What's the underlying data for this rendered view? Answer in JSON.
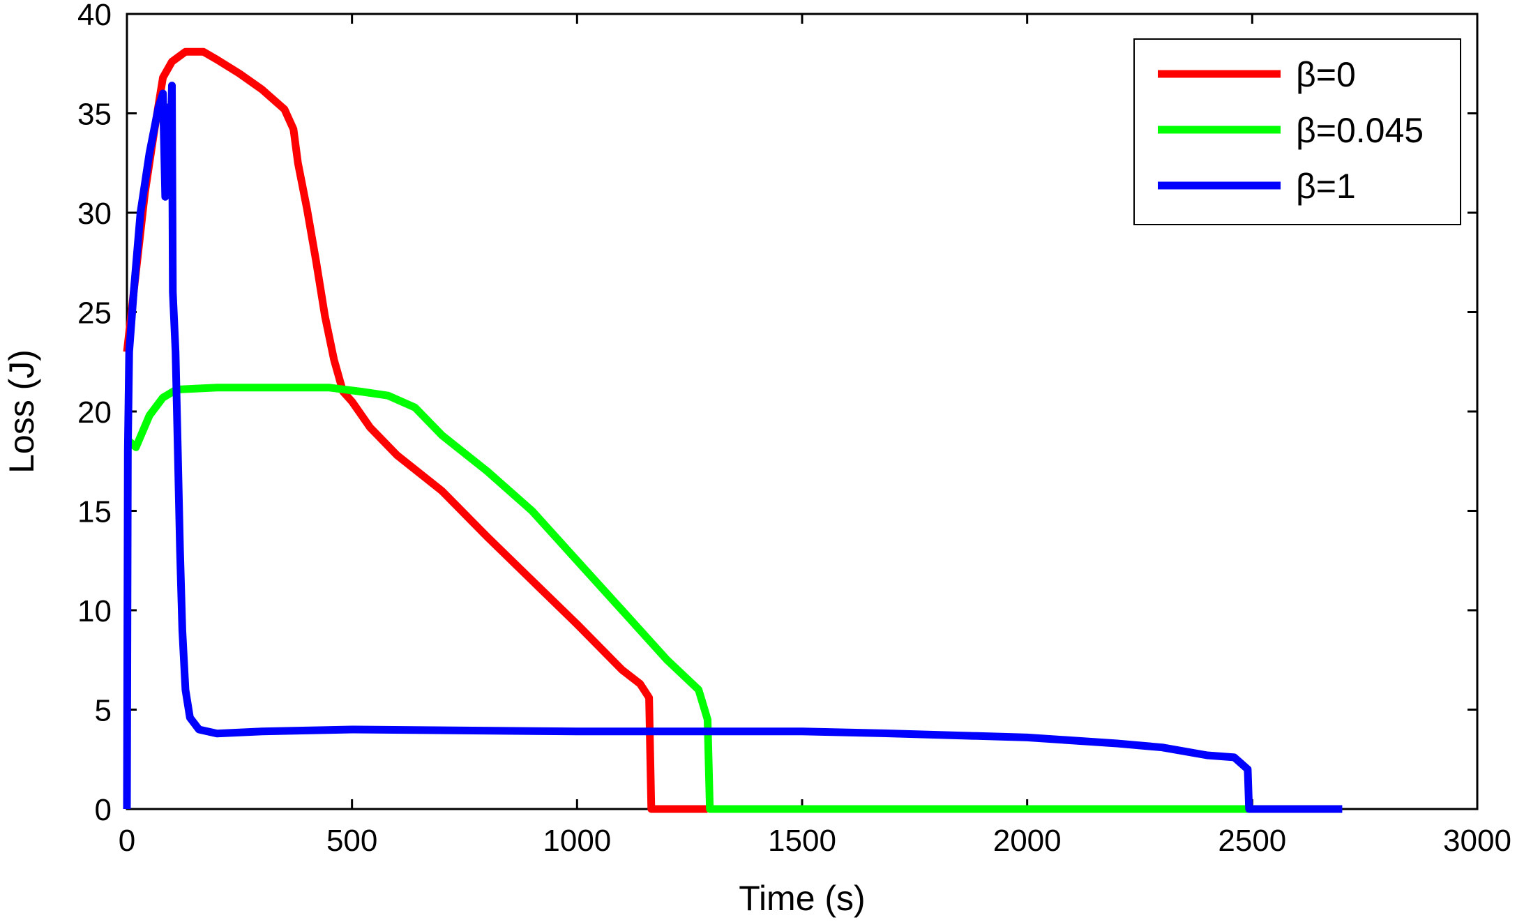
{
  "chart_data": {
    "type": "line",
    "xlabel": "Time (s)",
    "ylabel": "Loss (J)",
    "xlim": [
      0,
      3000
    ],
    "ylim": [
      0,
      40
    ],
    "x_ticks": [
      0,
      500,
      1000,
      1500,
      2000,
      2500,
      3000
    ],
    "y_ticks": [
      0,
      5,
      10,
      15,
      20,
      25,
      30,
      35,
      40
    ],
    "x_tick_labels": [
      "0",
      "500",
      "1000",
      "1500",
      "2000",
      "2500",
      "3000"
    ],
    "y_tick_labels": [
      "0",
      "5",
      "10",
      "15",
      "20",
      "25",
      "30",
      "35",
      "40"
    ],
    "grid": false,
    "legend_position": "top-right",
    "series": [
      {
        "name": "β=0",
        "color": "#ff0000",
        "points": [
          [
            0,
            23
          ],
          [
            20,
            27
          ],
          [
            40,
            31
          ],
          [
            60,
            34
          ],
          [
            80,
            36.8
          ],
          [
            100,
            37.6
          ],
          [
            130,
            38.1
          ],
          [
            170,
            38.1
          ],
          [
            200,
            37.7
          ],
          [
            250,
            37
          ],
          [
            300,
            36.2
          ],
          [
            350,
            35.2
          ],
          [
            370,
            34.2
          ],
          [
            380,
            32.5
          ],
          [
            400,
            30.2
          ],
          [
            420,
            27.6
          ],
          [
            440,
            24.8
          ],
          [
            460,
            22.6
          ],
          [
            480,
            21
          ],
          [
            500,
            20.5
          ],
          [
            540,
            19.2
          ],
          [
            600,
            17.8
          ],
          [
            700,
            16
          ],
          [
            800,
            13.7
          ],
          [
            900,
            11.5
          ],
          [
            1000,
            9.3
          ],
          [
            1100,
            7
          ],
          [
            1140,
            6.3
          ],
          [
            1160,
            5.6
          ],
          [
            1165,
            0
          ],
          [
            1290,
            0
          ]
        ]
      },
      {
        "name": "β=0.045",
        "color": "#00ff00",
        "points": [
          [
            0,
            18.6
          ],
          [
            20,
            18.2
          ],
          [
            50,
            19.8
          ],
          [
            80,
            20.7
          ],
          [
            110,
            21.1
          ],
          [
            200,
            21.2
          ],
          [
            300,
            21.2
          ],
          [
            400,
            21.2
          ],
          [
            450,
            21.2
          ],
          [
            520,
            21
          ],
          [
            580,
            20.8
          ],
          [
            640,
            20.2
          ],
          [
            700,
            18.8
          ],
          [
            800,
            17
          ],
          [
            900,
            15
          ],
          [
            1000,
            12.5
          ],
          [
            1100,
            10
          ],
          [
            1200,
            7.5
          ],
          [
            1270,
            6
          ],
          [
            1290,
            4.5
          ],
          [
            1295,
            0
          ],
          [
            2500,
            0
          ]
        ]
      },
      {
        "name": "β=1",
        "color": "#0000ff",
        "points": [
          [
            0,
            0
          ],
          [
            2,
            18
          ],
          [
            5,
            23
          ],
          [
            15,
            26
          ],
          [
            30,
            30
          ],
          [
            50,
            33
          ],
          [
            70,
            35.3
          ],
          [
            80,
            36
          ],
          [
            85,
            30.8
          ],
          [
            90,
            35.3
          ],
          [
            95,
            31
          ],
          [
            100,
            36.4
          ],
          [
            102,
            26
          ],
          [
            108,
            23
          ],
          [
            112,
            19
          ],
          [
            118,
            13
          ],
          [
            123,
            9
          ],
          [
            130,
            6
          ],
          [
            140,
            4.6
          ],
          [
            160,
            4
          ],
          [
            200,
            3.8
          ],
          [
            300,
            3.9
          ],
          [
            500,
            4
          ],
          [
            1000,
            3.9
          ],
          [
            1500,
            3.9
          ],
          [
            1700,
            3.8
          ],
          [
            2000,
            3.6
          ],
          [
            2200,
            3.3
          ],
          [
            2300,
            3.1
          ],
          [
            2400,
            2.7
          ],
          [
            2460,
            2.6
          ],
          [
            2490,
            2
          ],
          [
            2493,
            0
          ],
          [
            2700,
            0
          ]
        ]
      }
    ]
  }
}
